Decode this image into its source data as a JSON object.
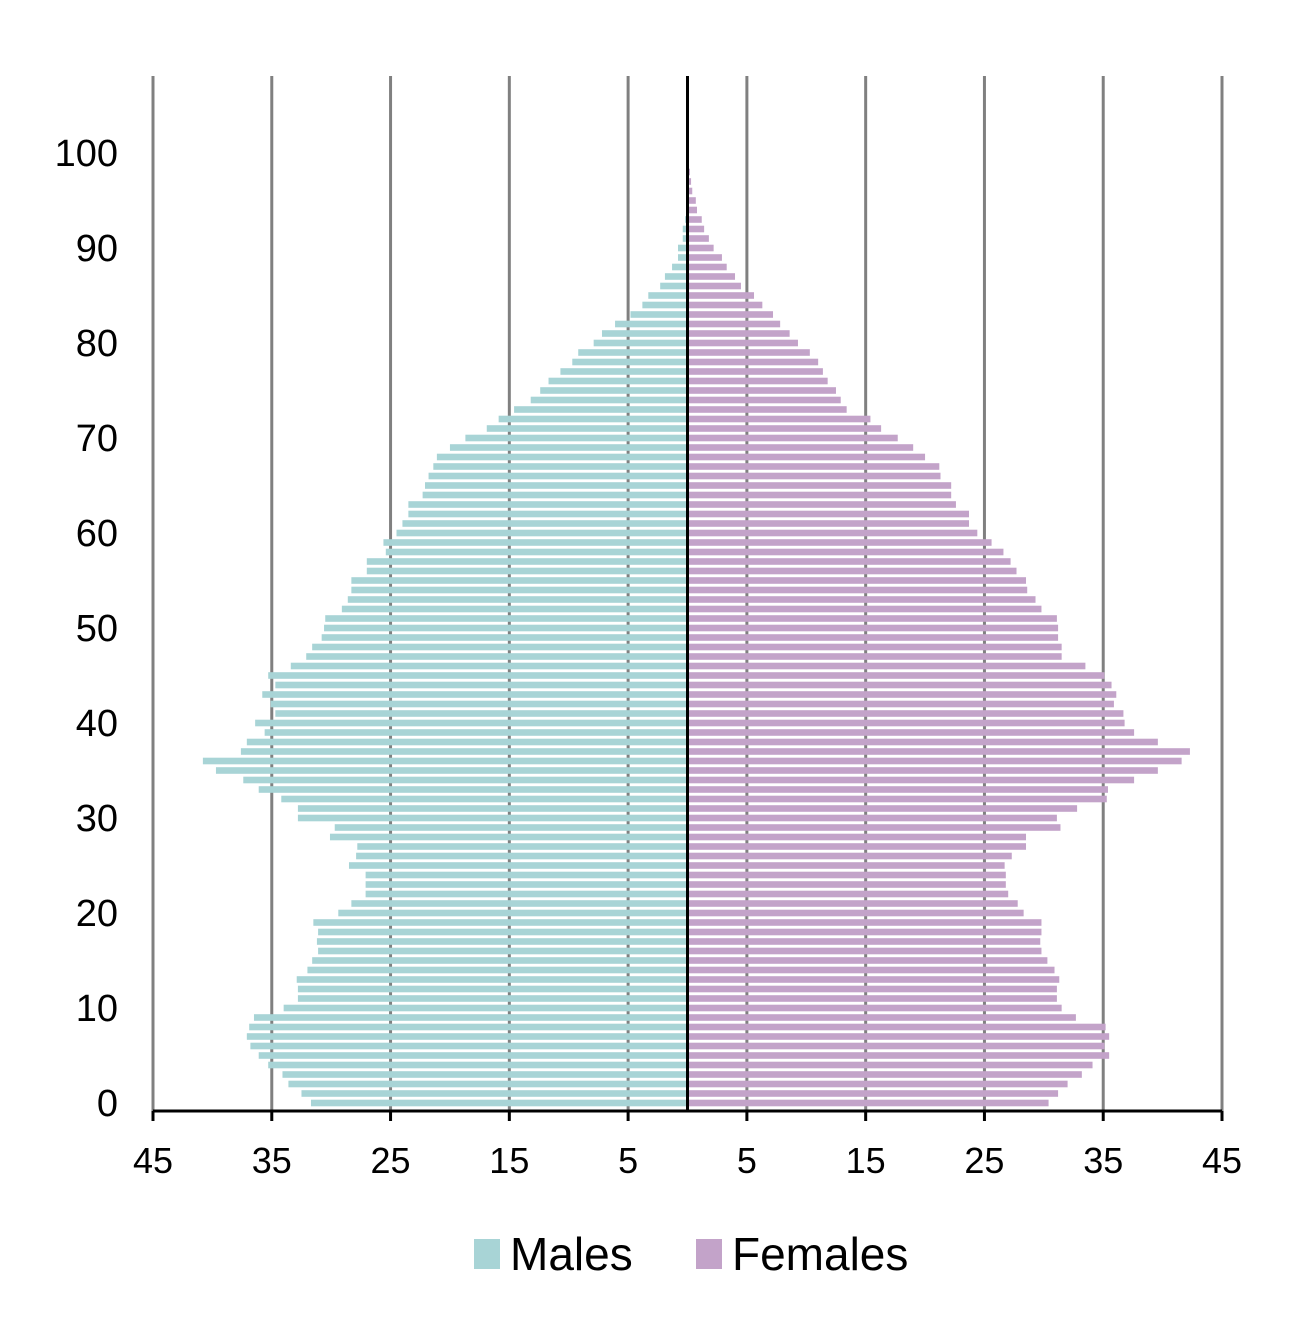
{
  "chart_data": {
    "type": "bar",
    "orientation": "horizontal",
    "subtype": "population-pyramid",
    "title": "",
    "xlabel": "",
    "ylabel": "",
    "x_ticks": [
      "45",
      "35",
      "25",
      "15",
      "5",
      "5",
      "15",
      "25",
      "35",
      "45"
    ],
    "xlim": [
      -45,
      45
    ],
    "y_ticks": [
      "0",
      "10",
      "20",
      "30",
      "40",
      "50",
      "60",
      "70",
      "80",
      "90",
      "100"
    ],
    "ylim": [
      0,
      100
    ],
    "grid": "vertical",
    "legend_position": "bottom",
    "colors": {
      "males": "#a8d4d6",
      "females": "#c3a3c9",
      "grid": "#808080",
      "axis": "#000000"
    },
    "ages": [
      0,
      1,
      2,
      3,
      4,
      5,
      6,
      7,
      8,
      9,
      10,
      11,
      12,
      13,
      14,
      15,
      16,
      17,
      18,
      19,
      20,
      21,
      22,
      23,
      24,
      25,
      26,
      27,
      28,
      29,
      30,
      31,
      32,
      33,
      34,
      35,
      36,
      37,
      38,
      39,
      40,
      41,
      42,
      43,
      44,
      45,
      46,
      47,
      48,
      49,
      50,
      51,
      52,
      53,
      54,
      55,
      56,
      57,
      58,
      59,
      60,
      61,
      62,
      63,
      64,
      65,
      66,
      67,
      68,
      69,
      70,
      71,
      72,
      73,
      74,
      75,
      76,
      77,
      78,
      79,
      80,
      81,
      82,
      83,
      84,
      85,
      86,
      87,
      88,
      89,
      90,
      91,
      92,
      93,
      94,
      95,
      96,
      97,
      98,
      99,
      100
    ],
    "series": [
      {
        "name": "Males",
        "color": "#a8d4d6",
        "values": [
          31.7,
          32.5,
          33.6,
          34.1,
          35.3,
          36.1,
          36.8,
          37.1,
          36.9,
          36.5,
          34.0,
          32.8,
          32.8,
          32.9,
          32.0,
          31.6,
          31.1,
          31.2,
          31.1,
          31.5,
          29.4,
          28.3,
          27.1,
          27.1,
          27.1,
          28.5,
          27.9,
          27.8,
          30.1,
          29.7,
          32.8,
          32.8,
          34.2,
          36.1,
          37.4,
          39.7,
          40.8,
          37.6,
          37.1,
          35.6,
          36.4,
          34.7,
          35.1,
          35.8,
          34.7,
          35.3,
          33.4,
          32.1,
          31.6,
          30.8,
          30.6,
          30.5,
          29.1,
          28.6,
          28.3,
          28.3,
          27.0,
          27.0,
          25.4,
          25.6,
          24.5,
          24.0,
          23.5,
          23.5,
          22.3,
          22.1,
          21.8,
          21.4,
          21.1,
          20.0,
          18.7,
          16.9,
          15.9,
          14.6,
          13.2,
          12.4,
          11.7,
          10.7,
          9.7,
          9.2,
          7.9,
          7.2,
          6.1,
          4.8,
          3.8,
          3.3,
          2.3,
          1.9,
          1.3,
          0.8,
          0.8,
          0.4,
          0.4,
          0.2,
          0.1,
          0.1,
          0,
          0,
          0,
          0,
          0
        ]
      },
      {
        "name": "Females",
        "color": "#c3a3c9",
        "values": [
          30.4,
          31.2,
          32.0,
          33.2,
          34.1,
          35.5,
          35.1,
          35.5,
          35.2,
          32.7,
          31.5,
          31.1,
          31.1,
          31.3,
          30.9,
          30.3,
          29.8,
          29.7,
          29.8,
          29.8,
          28.3,
          27.8,
          27.0,
          26.8,
          26.8,
          26.7,
          27.3,
          28.5,
          28.5,
          31.4,
          31.1,
          32.8,
          35.3,
          35.4,
          37.6,
          39.6,
          41.6,
          42.3,
          39.6,
          37.6,
          36.8,
          36.7,
          35.9,
          36.1,
          35.7,
          35.1,
          33.5,
          31.5,
          31.5,
          31.2,
          31.2,
          31.1,
          29.8,
          29.3,
          28.6,
          28.5,
          27.7,
          27.2,
          26.6,
          25.6,
          24.4,
          23.7,
          23.7,
          22.6,
          22.2,
          22.2,
          21.3,
          21.2,
          20.0,
          19.0,
          17.7,
          16.3,
          15.4,
          13.4,
          12.9,
          12.5,
          11.8,
          11.4,
          11.0,
          10.3,
          9.3,
          8.6,
          7.8,
          7.2,
          6.3,
          5.6,
          4.5,
          4.0,
          3.3,
          2.9,
          2.2,
          1.8,
          1.4,
          1.2,
          0.8,
          0.7,
          0.4,
          0.3,
          0.2,
          0.1,
          0
        ]
      }
    ]
  },
  "legend": {
    "items": [
      {
        "label": "Males",
        "color": "#a8d4d6"
      },
      {
        "label": "Females",
        "color": "#c3a3c9"
      }
    ]
  }
}
